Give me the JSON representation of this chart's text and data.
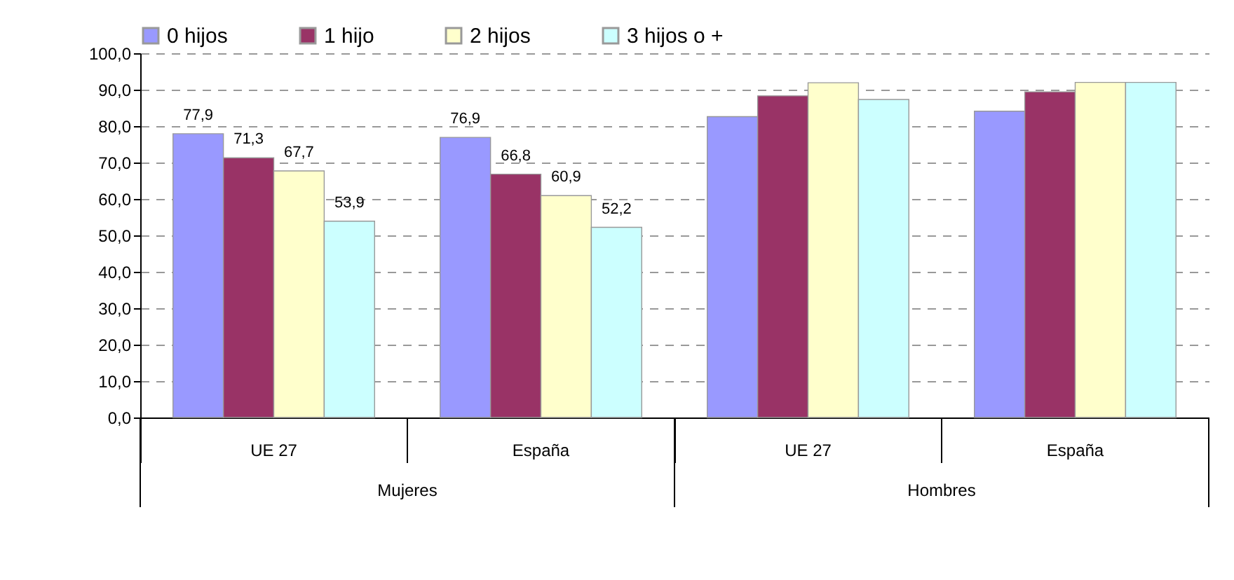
{
  "chart_data": {
    "type": "bar",
    "categories": [
      "UE 27",
      "España",
      "UE 27",
      "España"
    ],
    "annotations": [
      "Mujeres",
      "Hombres"
    ],
    "series": [
      {
        "name": "0 hijos",
        "color": "#9999ff",
        "values": [
          77.9,
          76.9,
          82.6,
          84.1
        ],
        "value_labels": [
          "77,9",
          "76,9",
          null,
          null
        ]
      },
      {
        "name": "1 hijo",
        "color": "#993366",
        "values": [
          71.3,
          66.8,
          88.3,
          89.4
        ],
        "value_labels": [
          "71,3",
          "66,8",
          null,
          null
        ]
      },
      {
        "name": "2 hijos",
        "color": "#ffffcc",
        "values": [
          67.7,
          60.9,
          91.9,
          92.0
        ],
        "value_labels": [
          "67,7",
          "60,9",
          null,
          null
        ]
      },
      {
        "name": "3 hijos o +",
        "color": "#ccffff",
        "values": [
          53.9,
          52.2,
          87.3,
          92.0
        ],
        "value_labels": [
          "53,9",
          "52,2",
          null,
          null
        ]
      }
    ],
    "ylim": [
      0,
      100
    ],
    "yticks": [
      {
        "value": 0,
        "label": "0,0"
      },
      {
        "value": 10,
        "label": "10,0"
      },
      {
        "value": 20,
        "label": "20,0"
      },
      {
        "value": 30,
        "label": "30,0"
      },
      {
        "value": 40,
        "label": "40,0"
      },
      {
        "value": 50,
        "label": "50,0"
      },
      {
        "value": 60,
        "label": "60,0"
      },
      {
        "value": 70,
        "label": "70,0"
      },
      {
        "value": 80,
        "label": "80,0"
      },
      {
        "value": 90,
        "label": "90,0"
      },
      {
        "value": 100,
        "label": "100,0"
      }
    ],
    "grid": "y",
    "legend": "top"
  }
}
